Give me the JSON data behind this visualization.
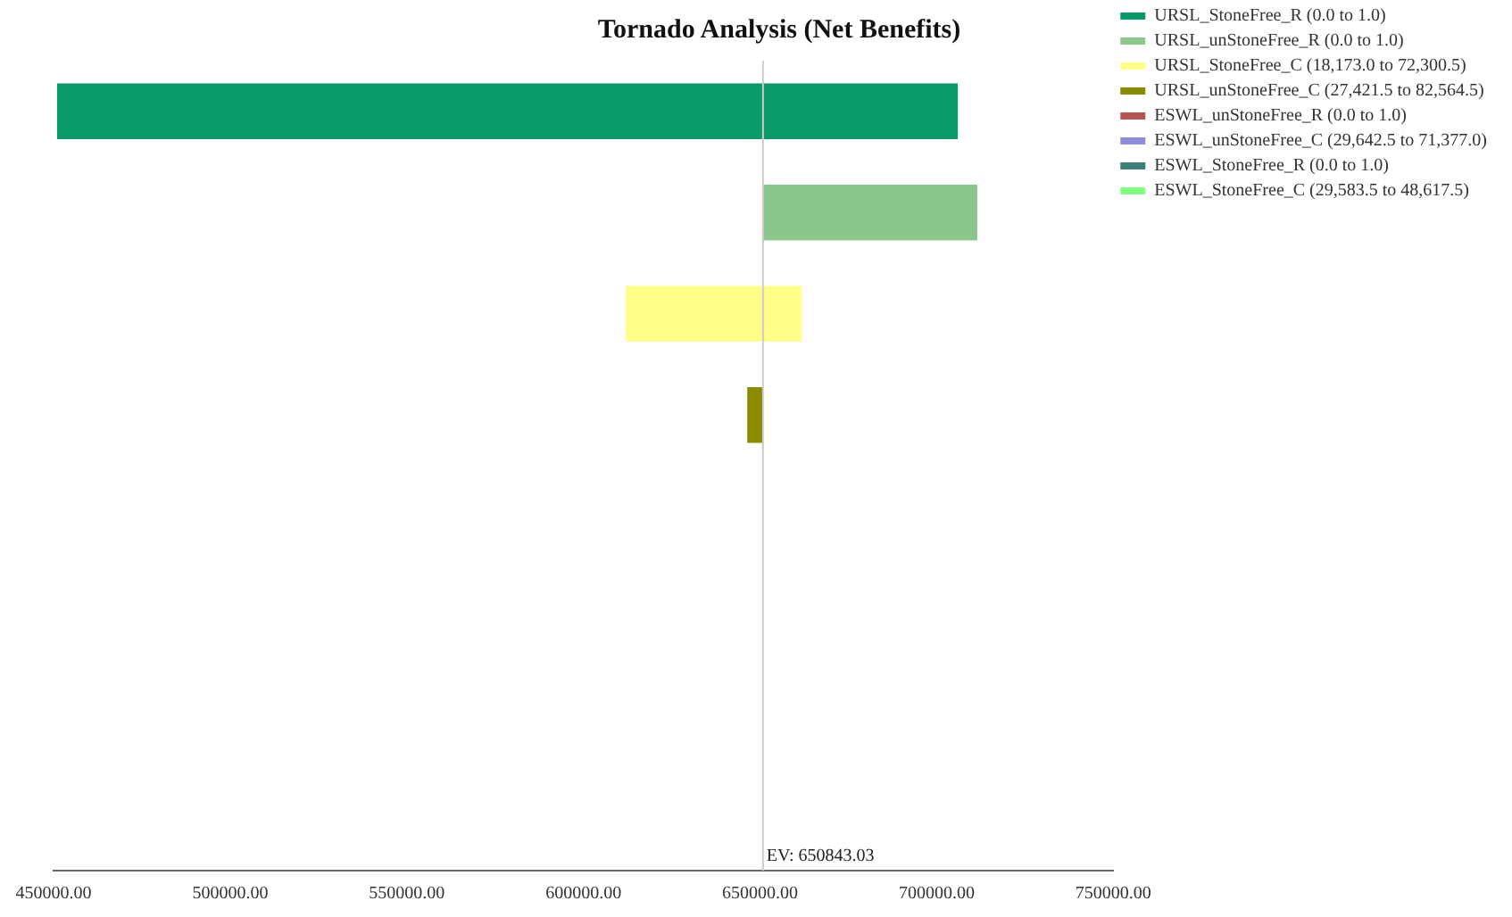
{
  "chart_data": {
    "type": "bar",
    "title": "Tornado Analysis (Net Benefits)",
    "orientation": "horizontal",
    "categories": [
      null,
      null,
      null,
      null,
      null,
      null,
      null,
      null
    ],
    "series": [
      {
        "name": "URSL_StoneFree_R (0.0 to 1.0)",
        "color": "#0a9a67",
        "base": [
          451000,
          null,
          null,
          null,
          null,
          null,
          null,
          null
        ],
        "values": [
          255000,
          null,
          null,
          null,
          null,
          null,
          null,
          null
        ]
      },
      {
        "name": "URSL_unStoneFree_R (0.0 to 1.0)",
        "color": "#8bc68a",
        "base": [
          null,
          650800,
          null,
          null,
          null,
          null,
          null,
          null
        ],
        "values": [
          null,
          60700,
          null,
          null,
          null,
          null,
          null,
          null
        ]
      },
      {
        "name": "URSL_StoneFree_C (18,173.0 to 72,300.5)",
        "color": "#ffff88",
        "base": [
          null,
          null,
          612000,
          null,
          null,
          null,
          null,
          null
        ],
        "values": [
          null,
          null,
          49800,
          null,
          null,
          null,
          null,
          null
        ]
      },
      {
        "name": "URSL_unStoneFree_C (27,421.5 to 82,564.5)",
        "color": "#8b8b00",
        "base": [
          null,
          null,
          null,
          646400,
          null,
          null,
          null,
          null
        ],
        "values": [
          null,
          null,
          null,
          4300,
          null,
          null,
          null,
          null
        ]
      },
      {
        "name": "ESWL_unStoneFree_R (0.0 to 1.0)",
        "color": "#b85450",
        "values": [
          null,
          null,
          null,
          null,
          null,
          null,
          null,
          null
        ]
      },
      {
        "name": "ESWL_unStoneFree_C (29,642.5 to 71,377.0)",
        "color": "#8e8ed8",
        "values": [
          null,
          null,
          null,
          null,
          null,
          null,
          null,
          null
        ]
      },
      {
        "name": "ESWL_StoneFree_R (0.0 to 1.0)",
        "color": "#3c8079",
        "values": [
          null,
          null,
          null,
          null,
          null,
          null,
          null,
          null
        ]
      },
      {
        "name": "ESWL_StoneFree_C (29,583.5 to 48,617.5)",
        "color": "#80ff80",
        "values": [
          null,
          null,
          null,
          null,
          null,
          null,
          null,
          null
        ]
      }
    ],
    "xlim": [
      450000,
      750000
    ],
    "xticks": [
      {
        "value": 450000,
        "label": "450000.00"
      },
      {
        "value": 500000,
        "label": "500000.00"
      },
      {
        "value": 550000,
        "label": "550000.00"
      },
      {
        "value": 600000,
        "label": "600000.00"
      },
      {
        "value": 650000,
        "label": "650000.00"
      },
      {
        "value": 700000,
        "label": "700000.00"
      },
      {
        "value": 750000,
        "label": "750000.00"
      }
    ],
    "ref_lines": [
      {
        "axis": "x",
        "value": 650843.03,
        "label": "EV: 650843.03",
        "color": "#cccccc"
      }
    ],
    "tick_labels": "x",
    "grid": false,
    "legend": "top right"
  }
}
